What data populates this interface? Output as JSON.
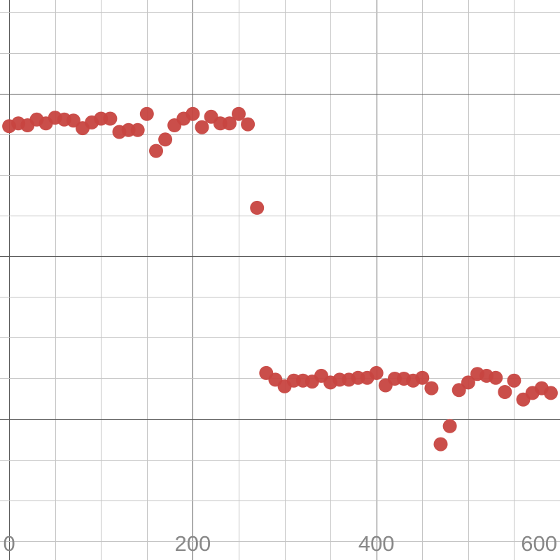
{
  "chart_data": {
    "type": "scatter",
    "title": "",
    "xlabel": "",
    "ylabel": "",
    "xlim": [
      -10,
      600
    ],
    "ylim": [
      -32,
      27
    ],
    "x_major_step": 200,
    "x_minor_step": 50,
    "y_major_step": 17.14,
    "y_minor_step": 4.285,
    "grid": true,
    "legend": "none",
    "point_color": "#c74440",
    "x_tick_labels": [
      "0",
      "200",
      "400",
      "600"
    ],
    "series": [
      {
        "points": [
          [
            0,
            13.7
          ],
          [
            10,
            14.0
          ],
          [
            20,
            13.8
          ],
          [
            30,
            14.4
          ],
          [
            40,
            14.0
          ],
          [
            50,
            14.6
          ],
          [
            60,
            14.4
          ],
          [
            70,
            14.3
          ],
          [
            80,
            13.5
          ],
          [
            90,
            14.1
          ],
          [
            100,
            14.5
          ],
          [
            110,
            14.5
          ],
          [
            120,
            13.1
          ],
          [
            130,
            13.3
          ],
          [
            140,
            13.3
          ],
          [
            150,
            15.0
          ],
          [
            160,
            11.1
          ],
          [
            170,
            12.3
          ],
          [
            180,
            13.8
          ],
          [
            190,
            14.5
          ],
          [
            200,
            15.0
          ],
          [
            210,
            13.6
          ],
          [
            220,
            14.7
          ],
          [
            230,
            14.0
          ],
          [
            240,
            14.0
          ],
          [
            250,
            15.0
          ],
          [
            260,
            13.9
          ],
          [
            270,
            5.1
          ],
          [
            280,
            -12.3
          ],
          [
            290,
            -13.0
          ],
          [
            300,
            -13.7
          ],
          [
            310,
            -13.1
          ],
          [
            320,
            -13.1
          ],
          [
            330,
            -13.2
          ],
          [
            340,
            -12.6
          ],
          [
            350,
            -13.3
          ],
          [
            360,
            -13.0
          ],
          [
            370,
            -13.0
          ],
          [
            380,
            -12.8
          ],
          [
            390,
            -12.8
          ],
          [
            400,
            -12.3
          ],
          [
            410,
            -13.6
          ],
          [
            420,
            -12.9
          ],
          [
            430,
            -12.9
          ],
          [
            440,
            -13.1
          ],
          [
            450,
            -12.8
          ],
          [
            460,
            -13.9
          ],
          [
            470,
            -19.8
          ],
          [
            480,
            -17.9
          ],
          [
            490,
            -14.1
          ],
          [
            500,
            -13.3
          ],
          [
            510,
            -12.4
          ],
          [
            520,
            -12.6
          ],
          [
            530,
            -12.8
          ],
          [
            540,
            -14.3
          ],
          [
            550,
            -13.1
          ],
          [
            560,
            -15.1
          ],
          [
            570,
            -14.4
          ],
          [
            580,
            -13.9
          ],
          [
            590,
            -14.4
          ]
        ]
      }
    ]
  }
}
